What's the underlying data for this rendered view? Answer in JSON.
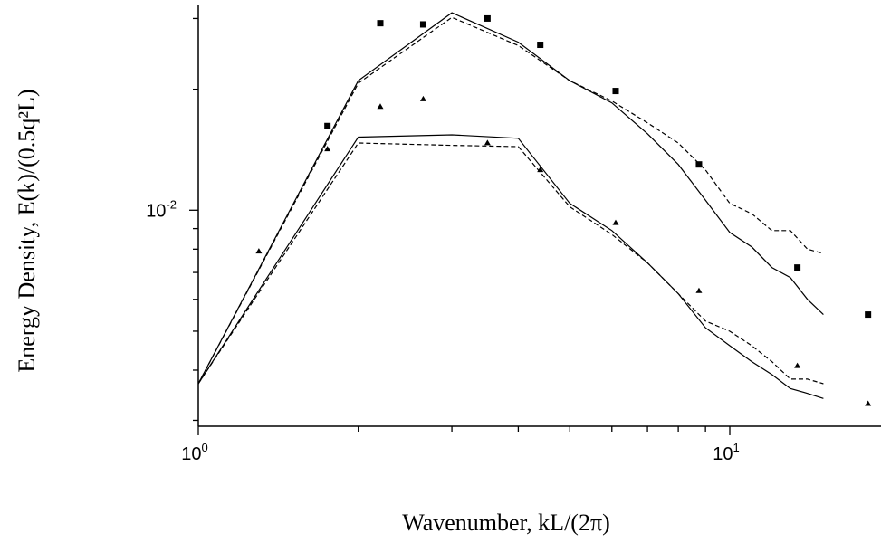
{
  "chart_data": {
    "type": "line",
    "xscale": "log",
    "yscale": "log",
    "xlim": [
      1,
      20
    ],
    "ylim": [
      0.0029,
      0.0325
    ],
    "xlabel": "Wavenumber, kL/(2π)",
    "ylabel": "Energy Density, E(k)/(0.5q²L)",
    "x_ticks": [
      {
        "value": 1,
        "base": "10",
        "exp": "0"
      },
      {
        "value": 10,
        "base": "10",
        "exp": "1"
      }
    ],
    "y_ticks": [
      {
        "value": 0.01,
        "base": "10",
        "exp": "-2"
      }
    ],
    "grid": false,
    "series": [
      {
        "style": "solid",
        "x": [
          1,
          2,
          3,
          4,
          5,
          6,
          7,
          8,
          9,
          10,
          11,
          12,
          13,
          14,
          15
        ],
        "y": [
          0.0037,
          0.021,
          0.031,
          0.0262,
          0.021,
          0.0185,
          0.0155,
          0.013,
          0.0106,
          0.0088,
          0.0081,
          0.0072,
          0.0068,
          0.006,
          0.0055
        ]
      },
      {
        "style": "dashed",
        "x": [
          1,
          2,
          3,
          4,
          5,
          6,
          7,
          8,
          9,
          10,
          11,
          12,
          13,
          14,
          15
        ],
        "y": [
          0.0037,
          0.0207,
          0.0302,
          0.0257,
          0.021,
          0.0187,
          0.0165,
          0.0147,
          0.0126,
          0.0104,
          0.0098,
          0.0089,
          0.0089,
          0.008,
          0.0078
        ]
      },
      {
        "style": "solid",
        "x": [
          1,
          2,
          3,
          4,
          5,
          6,
          7,
          8,
          9,
          10,
          11,
          12,
          13,
          14,
          15
        ],
        "y": [
          0.0037,
          0.0152,
          0.0154,
          0.0151,
          0.0104,
          0.0089,
          0.0074,
          0.0062,
          0.0051,
          0.0046,
          0.0042,
          0.0039,
          0.0036,
          0.0035,
          0.0034
        ]
      },
      {
        "style": "dashed",
        "x": [
          1,
          2,
          3,
          4,
          5,
          6,
          7,
          8,
          9,
          10,
          11,
          12,
          13,
          14,
          15
        ],
        "y": [
          0.0037,
          0.0147,
          0.0145,
          0.0144,
          0.0102,
          0.0087,
          0.0074,
          0.0062,
          0.0053,
          0.005,
          0.0046,
          0.0042,
          0.0038,
          0.0038,
          0.0037
        ]
      },
      {
        "style": "markers",
        "marker": "square",
        "x": [
          1.75,
          2.2,
          2.65,
          3.5,
          4.4,
          6.1,
          8.75,
          13.4,
          18.2
        ],
        "y": [
          0.0162,
          0.0292,
          0.029,
          0.03,
          0.0258,
          0.0198,
          0.013,
          0.0072,
          0.0055
        ]
      },
      {
        "style": "markers",
        "marker": "triangle",
        "x": [
          1.3,
          1.75,
          2.2,
          2.65,
          3.5,
          4.4,
          6.1,
          8.75,
          13.4,
          18.2
        ],
        "y": [
          0.0079,
          0.0142,
          0.0181,
          0.0189,
          0.0147,
          0.0126,
          0.0093,
          0.0063,
          0.0041,
          0.0033
        ]
      }
    ]
  }
}
